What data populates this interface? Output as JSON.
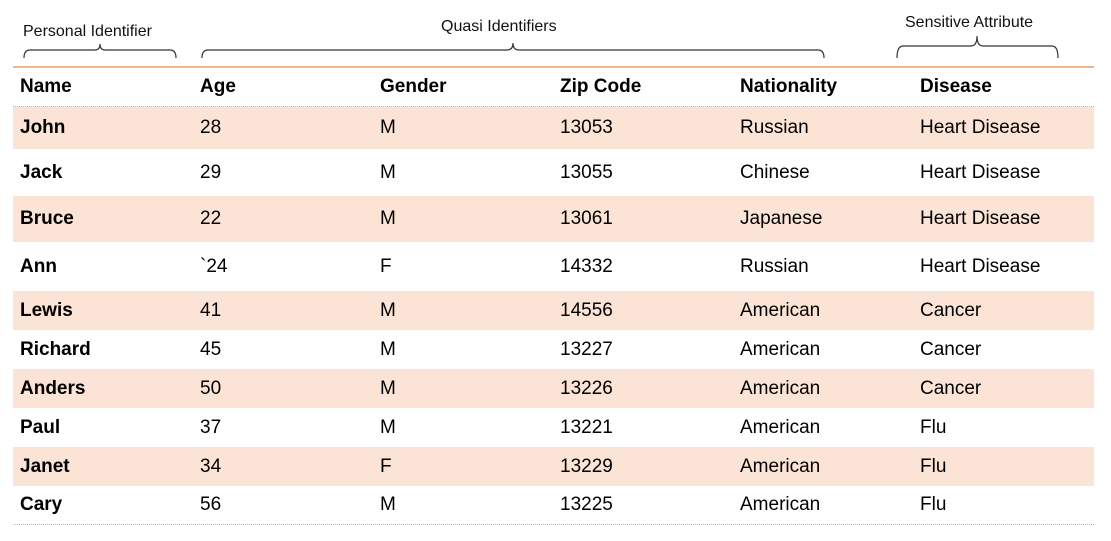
{
  "groups": {
    "personal": "Personal Identifier",
    "quasi": "Quasi Identifiers",
    "sensitive": "Sensitive Attribute"
  },
  "colors": {
    "accent_rule": "#f0b38e",
    "row_shade": "#fbe4d6"
  },
  "table": {
    "headers": [
      "Name",
      "Age",
      "Gender",
      "Zip Code",
      "Nationality",
      "Disease"
    ],
    "rows": [
      [
        "John",
        "28",
        "M",
        "13053",
        "Russian",
        "Heart Disease"
      ],
      [
        "Jack",
        "29",
        "M",
        "13055",
        "Chinese",
        "Heart Disease"
      ],
      [
        "Bruce",
        "22",
        "M",
        "13061",
        "Japanese",
        "Heart Disease"
      ],
      [
        "Ann",
        "`24",
        "F",
        "14332",
        "Russian",
        "Heart Disease"
      ],
      [
        "Lewis",
        "41",
        "M",
        "14556",
        "American",
        "Cancer"
      ],
      [
        "Richard",
        "45",
        "M",
        "13227",
        "American",
        "Cancer"
      ],
      [
        "Anders",
        "50",
        "M",
        "13226",
        "American",
        "Cancer"
      ],
      [
        "Paul",
        "37",
        "M",
        "13221",
        "American",
        "Flu"
      ],
      [
        "Janet",
        "34",
        "F",
        "13229",
        "American",
        "Flu"
      ],
      [
        "Cary",
        "56",
        "M",
        "13225",
        "American",
        "Flu"
      ]
    ]
  }
}
